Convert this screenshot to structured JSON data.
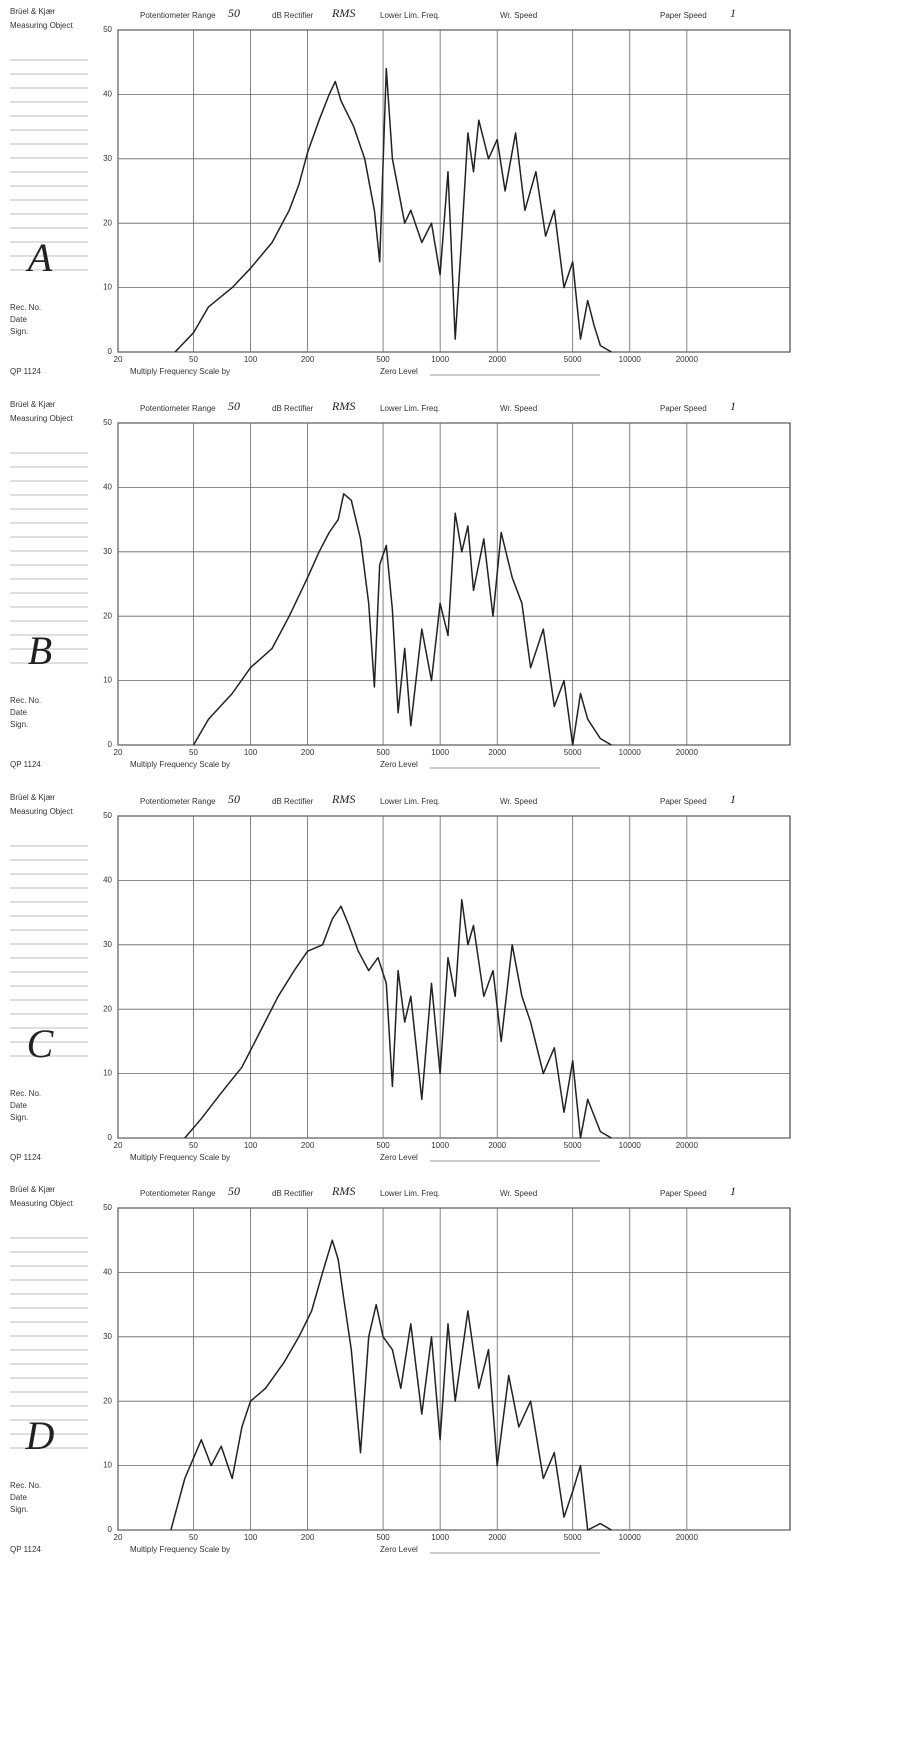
{
  "form": {
    "brand": "Brüel & Kjær",
    "measuring_object": "Measuring Object",
    "potentiometer_range": "Potentiometer Range",
    "rectifier": "dB Rectifier",
    "lower_lim_freq": "Lower Lim. Freq.",
    "writing_speed": "Wr. Speed",
    "paper_speed": "Paper Speed",
    "rec_no": "Rec. No.",
    "date": "Date",
    "sign": "Sign.",
    "multiply": "Multiply Frequency Scale by",
    "zero_level": "Zero Level",
    "form_no": "QP 1124"
  },
  "chart_data": [
    {
      "type": "line",
      "title": "A",
      "potentiometer_range": "50",
      "rectifier": "RMS",
      "paper_speed": "1",
      "log_x": true,
      "grid": true,
      "color": "#222222",
      "xlim": [
        20,
        70000
      ],
      "ylim": [
        0,
        50
      ],
      "xticks": [
        20,
        50,
        100,
        200,
        500,
        1000,
        2000,
        5000,
        10000,
        20000
      ],
      "yticks": [
        0,
        10,
        20,
        30,
        40,
        50
      ],
      "x": [
        40,
        50,
        60,
        80,
        100,
        130,
        160,
        180,
        200,
        230,
        260,
        280,
        300,
        350,
        400,
        450,
        480,
        520,
        560,
        650,
        700,
        800,
        900,
        1000,
        1100,
        1200,
        1300,
        1400,
        1500,
        1600,
        1800,
        2000,
        2200,
        2500,
        2800,
        3200,
        3600,
        4000,
        4500,
        5000,
        5500,
        6000,
        6500,
        7000,
        8000
      ],
      "values": [
        0,
        3,
        7,
        10,
        13,
        17,
        22,
        26,
        31,
        36,
        40,
        42,
        39,
        35,
        30,
        22,
        14,
        44,
        30,
        20,
        22,
        17,
        20,
        12,
        28,
        2,
        18,
        34,
        28,
        36,
        30,
        33,
        25,
        34,
        22,
        28,
        18,
        22,
        10,
        14,
        2,
        8,
        4,
        1,
        0
      ]
    },
    {
      "type": "line",
      "title": "B",
      "potentiometer_range": "50",
      "rectifier": "RMS",
      "paper_speed": "1",
      "log_x": true,
      "grid": true,
      "color": "#222222",
      "xlim": [
        20,
        70000
      ],
      "ylim": [
        0,
        50
      ],
      "xticks": [
        20,
        50,
        100,
        200,
        500,
        1000,
        2000,
        5000,
        10000,
        20000
      ],
      "yticks": [
        0,
        10,
        20,
        30,
        40,
        50
      ],
      "x": [
        50,
        60,
        80,
        100,
        130,
        160,
        200,
        230,
        260,
        290,
        310,
        340,
        380,
        420,
        450,
        480,
        520,
        560,
        600,
        650,
        700,
        800,
        900,
        1000,
        1100,
        1200,
        1300,
        1400,
        1500,
        1700,
        1900,
        2100,
        2400,
        2700,
        3000,
        3500,
        4000,
        4500,
        5000,
        5500,
        6000,
        7000,
        8000
      ],
      "values": [
        0,
        4,
        8,
        12,
        15,
        20,
        26,
        30,
        33,
        35,
        39,
        38,
        32,
        22,
        9,
        28,
        31,
        21,
        5,
        15,
        3,
        18,
        10,
        22,
        17,
        36,
        30,
        34,
        24,
        32,
        20,
        33,
        26,
        22,
        12,
        18,
        6,
        10,
        0,
        8,
        4,
        1,
        0
      ]
    },
    {
      "type": "line",
      "title": "C",
      "potentiometer_range": "50",
      "rectifier": "RMS",
      "paper_speed": "1",
      "log_x": true,
      "grid": true,
      "color": "#222222",
      "xlim": [
        20,
        70000
      ],
      "ylim": [
        0,
        50
      ],
      "xticks": [
        20,
        50,
        100,
        200,
        500,
        1000,
        2000,
        5000,
        10000,
        20000
      ],
      "yticks": [
        0,
        10,
        20,
        30,
        40,
        50
      ],
      "x": [
        45,
        55,
        70,
        90,
        110,
        140,
        170,
        200,
        240,
        270,
        300,
        330,
        370,
        420,
        470,
        520,
        560,
        600,
        650,
        700,
        800,
        900,
        1000,
        1100,
        1200,
        1300,
        1400,
        1500,
        1700,
        1900,
        2100,
        2400,
        2700,
        3000,
        3500,
        4000,
        4500,
        5000,
        5500,
        6000,
        7000,
        8000
      ],
      "values": [
        0,
        3,
        7,
        11,
        16,
        22,
        26,
        29,
        30,
        34,
        36,
        33,
        29,
        26,
        28,
        24,
        8,
        26,
        18,
        22,
        6,
        24,
        10,
        28,
        22,
        37,
        30,
        33,
        22,
        26,
        15,
        30,
        22,
        18,
        10,
        14,
        4,
        12,
        0,
        6,
        1,
        0
      ]
    },
    {
      "type": "line",
      "title": "D",
      "potentiometer_range": "50",
      "rectifier": "RMS",
      "paper_speed": "1",
      "log_x": true,
      "grid": true,
      "color": "#222222",
      "xlim": [
        20,
        70000
      ],
      "ylim": [
        0,
        50
      ],
      "xticks": [
        20,
        50,
        100,
        200,
        500,
        1000,
        2000,
        5000,
        10000,
        20000
      ],
      "yticks": [
        0,
        10,
        20,
        30,
        40,
        50
      ],
      "x": [
        38,
        45,
        55,
        62,
        70,
        80,
        90,
        100,
        120,
        150,
        180,
        210,
        240,
        270,
        290,
        310,
        340,
        380,
        420,
        460,
        500,
        560,
        620,
        700,
        800,
        900,
        1000,
        1100,
        1200,
        1400,
        1600,
        1800,
        2000,
        2300,
        2600,
        3000,
        3500,
        4000,
        4500,
        5000,
        5500,
        6000,
        7000,
        8000
      ],
      "values": [
        0,
        8,
        14,
        10,
        13,
        8,
        16,
        20,
        22,
        26,
        30,
        34,
        40,
        45,
        42,
        36,
        28,
        12,
        30,
        35,
        30,
        28,
        22,
        32,
        18,
        30,
        14,
        32,
        20,
        34,
        22,
        28,
        10,
        24,
        16,
        20,
        8,
        12,
        2,
        6,
        10,
        0,
        1,
        0
      ]
    }
  ]
}
